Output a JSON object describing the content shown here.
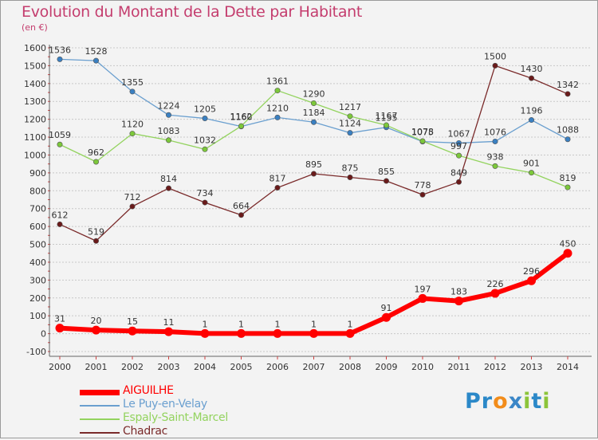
{
  "title": "Evolution du Montant de la Dette par Habitant",
  "unit": "(en €)",
  "logo": {
    "text": "Proxiti",
    "letters": [
      {
        "ch": "P",
        "color": "#2b88c8"
      },
      {
        "ch": "r",
        "color": "#2b88c8"
      },
      {
        "ch": "o",
        "color": "#f28c1a"
      },
      {
        "ch": "x",
        "color": "#3a86c7"
      },
      {
        "ch": "i",
        "color": "#8cc43a"
      },
      {
        "ch": "t",
        "color": "#2b88c8"
      },
      {
        "ch": "i",
        "color": "#8cc43a"
      }
    ]
  },
  "chart_data": {
    "type": "line",
    "title": "Evolution du Montant de la Dette par Habitant",
    "ylabel": "(en €)",
    "xlabel": "",
    "ylim": [
      -100,
      1600
    ],
    "yticks": [
      -100,
      0,
      100,
      200,
      300,
      400,
      500,
      600,
      700,
      800,
      900,
      1000,
      1100,
      1200,
      1300,
      1400,
      1500,
      1600
    ],
    "categories": [
      "2000",
      "2001",
      "2002",
      "2003",
      "2004",
      "2005",
      "2006",
      "2007",
      "2008",
      "2009",
      "2010",
      "2011",
      "2012",
      "2013",
      "2014"
    ],
    "grid": "horizontal dashed",
    "legend_position": "bottom-left",
    "series": [
      {
        "name": "Le Puy-en-Velay",
        "color": "#6a9fcf",
        "marker": "#3a80c2",
        "values": [
          1536,
          1528,
          1355,
          1224,
          1205,
          1160,
          1210,
          1184,
          1124,
          1155,
          1075,
          1067,
          1076,
          1196,
          1088
        ]
      },
      {
        "name": "Espaly-Saint-Marcel",
        "color": "#93d35e",
        "marker": "#7cc83a",
        "values": [
          1059,
          962,
          1120,
          1083,
          1032,
          1162,
          1361,
          1290,
          1217,
          1167,
          1078,
          997,
          938,
          901,
          819
        ]
      },
      {
        "name": "Chadrac",
        "color": "#7a2a2a",
        "marker": "#6a1a1a",
        "values": [
          612,
          519,
          712,
          814,
          734,
          664,
          817,
          895,
          875,
          855,
          778,
          849,
          1500,
          1430,
          1342
        ]
      },
      {
        "name": "AIGUILHE",
        "color": "#ff0000",
        "marker": "#ff0000",
        "values": [
          31,
          20,
          15,
          11,
          1,
          1,
          1,
          1,
          1,
          91,
          197,
          183,
          226,
          296,
          450
        ]
      }
    ]
  }
}
